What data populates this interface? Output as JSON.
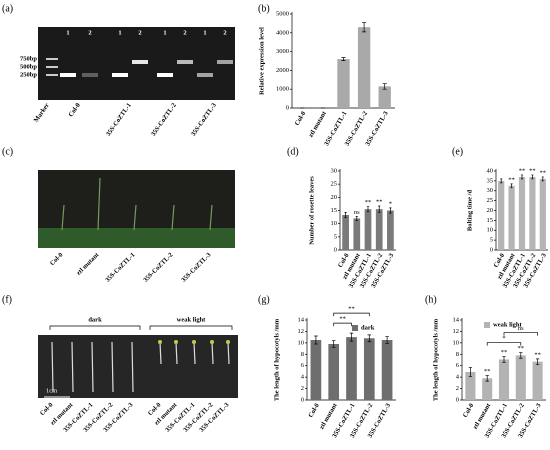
{
  "panel_labels": [
    "(a)",
    "(b)",
    "(c)",
    "(d)",
    "(e)",
    "(f)",
    "(g)",
    "(h)"
  ],
  "gel": {
    "lanes": [
      "1",
      "2",
      "1",
      "2",
      "1",
      "2",
      "1",
      "2"
    ],
    "markers": [
      "750bp",
      "500bp",
      "250bp"
    ],
    "samples": [
      "Marker",
      "Col-0",
      "35S-CoZTL-1",
      "35S-CoZTL-2",
      "35S-CoZTL-3"
    ]
  },
  "plants": {
    "samples": [
      "Col-0",
      "ztl mutant",
      "35S-CoZTL-1",
      "35S-CoZTL-2",
      "35S-CoZTL-3"
    ]
  },
  "seedlings": {
    "conditions": [
      "dark",
      "weak light"
    ],
    "scale": "1cm",
    "samples": [
      "Col-0",
      "ztl mutant",
      "35S-CoZTL-1",
      "35S-CoZTL-2",
      "35S-CoZTL-3",
      "Col-0",
      "ztl mutant",
      "35S-CoZTL-1",
      "35S-CoZTL-2",
      "35S-CoZTL-3"
    ]
  },
  "chart_data": [
    {
      "type": "bar",
      "ylabel": "Relative expression level",
      "categories": [
        "Col-0",
        "ztl mutant",
        "35S-CoZTL-1",
        "35S-CoZTL-2",
        "35S-CoZTL-3"
      ],
      "values": [
        1,
        1,
        2600,
        4300,
        1150
      ],
      "errors": [
        0,
        0,
        80,
        250,
        150
      ],
      "color": "#a9a9a9",
      "ylim": [
        0,
        5000
      ],
      "yticks": [
        0,
        1000,
        2000,
        3000,
        4000,
        5000
      ]
    },
    {
      "type": "bar",
      "ylabel": "Number of rosette leaves",
      "categories": [
        "Col-0",
        "ztl mutant",
        "35S-CoZTL-1",
        "35S-CoZTL-2",
        "35S-CoZTL-3"
      ],
      "values": [
        13.3,
        12.0,
        15.5,
        15.5,
        15.0
      ],
      "errors": [
        1.0,
        0.8,
        1.0,
        1.2,
        1.0
      ],
      "color": "#7a7a7a",
      "annotations": [
        null,
        "ns",
        "**",
        "**",
        "*"
      ],
      "ylim": [
        0,
        30
      ],
      "yticks": [
        0,
        5,
        10,
        15,
        20,
        25,
        30
      ]
    },
    {
      "type": "bar",
      "ylabel": "Bolting time /d",
      "categories": [
        "Col-0",
        "ztl mutant",
        "35S-CoZTL-1",
        "35S-CoZTL-2",
        "35S-CoZTL-3"
      ],
      "values": [
        35,
        32.5,
        37,
        37,
        36
      ],
      "errors": [
        1.0,
        1.0,
        1.0,
        1.0,
        1.0
      ],
      "color": "#b5b5b5",
      "annotations": [
        null,
        "**",
        "**",
        "**",
        "**"
      ],
      "ylim": [
        0,
        40
      ],
      "yticks": [
        0,
        5,
        10,
        15,
        20,
        25,
        30,
        35,
        40
      ]
    },
    {
      "type": "bar",
      "ylabel": "The length of hypocotyls /mm",
      "categories": [
        "Col-0",
        "ztl mutant",
        "35S-CoZTL-1",
        "35S-CoZTL-2",
        "35S-CoZTL-3"
      ],
      "series": [
        {
          "name": "dark",
          "color": "#6e6e6e",
          "values": [
            10.5,
            9.8,
            11.0,
            10.8,
            10.5
          ],
          "errors": [
            0.7,
            0.6,
            0.7,
            0.6,
            0.6
          ]
        }
      ],
      "brackets": [
        {
          "label": "**",
          "between": [
            "ztl mutant",
            "35S-CoZTL-1"
          ]
        },
        {
          "label": "**",
          "between": [
            "ztl mutant",
            "35S-CoZTL-2"
          ]
        }
      ],
      "ylim": [
        0,
        14
      ],
      "yticks": [
        0,
        2,
        4,
        6,
        8,
        10,
        12,
        14
      ]
    },
    {
      "type": "bar",
      "ylabel": "The length of hypocotyls /mm",
      "categories": [
        "Col-0",
        "ztl mutant",
        "35S-CoZTL-1",
        "35S-CoZTL-2",
        "35S-CoZTL-3"
      ],
      "series": [
        {
          "name": "weak light",
          "color": "#b3b3b3",
          "values": [
            4.9,
            3.8,
            7.1,
            7.8,
            6.7
          ],
          "errors": [
            0.8,
            0.5,
            0.5,
            0.5,
            0.5
          ]
        }
      ],
      "annotations": [
        null,
        "**",
        "**",
        "**",
        "**"
      ],
      "brackets": [
        {
          "label": "*",
          "between": [
            "ztl mutant",
            "35S-CoZTL-2"
          ]
        },
        {
          "label": "ns",
          "between": [
            "35S-CoZTL-1",
            "35S-CoZTL-3"
          ]
        }
      ],
      "ylim": [
        0,
        14
      ],
      "yticks": [
        0,
        2,
        4,
        6,
        8,
        10,
        12,
        14
      ]
    }
  ]
}
